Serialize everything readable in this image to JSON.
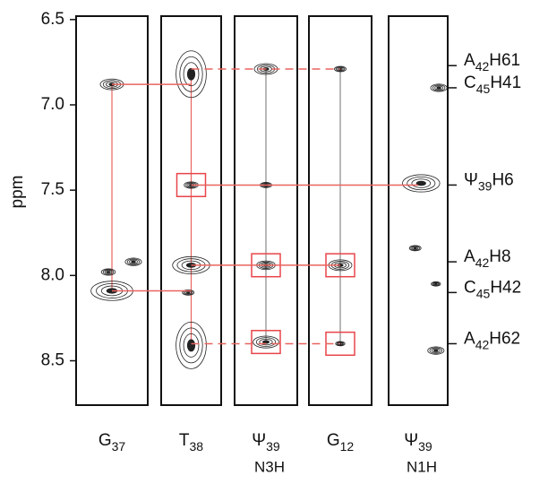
{
  "chart_data": {
    "type": "nmr-strips",
    "y_label": "ppm",
    "ylim": [
      6.48,
      8.76
    ],
    "yticks": [
      6.5,
      {
        "value": 7,
        "label": "7.0"
      },
      7.5,
      {
        "value": 8,
        "label": "8.0"
      },
      8.5
    ],
    "strips": [
      {
        "name": "G",
        "subscript": "37",
        "atom": null,
        "peaks": [
          6.88,
          8.09,
          7.98,
          7.92
        ],
        "boxes": []
      },
      {
        "name": "T",
        "subscript": "38",
        "atom": null,
        "peaks": [
          6.82,
          7.47,
          7.94,
          8.1,
          8.41
        ],
        "boxes": [
          7.47
        ]
      },
      {
        "name": "Ψ",
        "subscript": "39",
        "atom": "N3H",
        "peaks": [
          6.79,
          7.47,
          7.94,
          8.39
        ],
        "boxes": [
          7.94,
          8.39
        ]
      },
      {
        "name": "G",
        "subscript": "12",
        "atom": null,
        "peaks": [
          6.79,
          7.94,
          8.4
        ],
        "boxes": [
          7.94,
          8.4
        ]
      },
      {
        "name": "Ψ",
        "subscript": "39",
        "atom": "N1H",
        "peaks": [
          7.46,
          6.9,
          7.84,
          8.05,
          8.44
        ],
        "boxes": []
      }
    ],
    "connections": [
      {
        "from": 0,
        "to": 1,
        "ppm": 6.88,
        "dashed": false
      },
      {
        "from": 1,
        "to": 3,
        "ppm": 6.79,
        "dashed": true
      },
      {
        "from": 1,
        "to": 4,
        "ppm": 7.47,
        "dashed": false
      },
      {
        "from": 1,
        "to": 3,
        "ppm": 7.94,
        "dashed": false
      },
      {
        "from": 0,
        "to": 1,
        "ppm": 8.09,
        "dashed": false
      },
      {
        "from": 1,
        "to": 3,
        "ppm": 8.4,
        "dashed": true
      }
    ],
    "walks": [
      {
        "strip": 0,
        "from": 6.88,
        "to": 8.09,
        "color": "#e8645f"
      },
      {
        "strip": 1,
        "from": 6.79,
        "to": 8.4,
        "color": "#e8645f"
      },
      {
        "strip": 2,
        "from": 6.79,
        "to": 8.4,
        "color": "#888888"
      },
      {
        "strip": 3,
        "from": 6.79,
        "to": 8.4,
        "color": "#888888"
      }
    ],
    "assignments": [
      {
        "name": "A",
        "subscript": "42",
        "atom": "H61",
        "ppm": 6.77
      },
      {
        "name": "C",
        "subscript": "45",
        "atom": "H41",
        "ppm": 6.9
      },
      {
        "name": "Ψ",
        "subscript": "39",
        "atom": "H6",
        "ppm": 7.47
      },
      {
        "name": "A",
        "subscript": "42",
        "atom": "H8",
        "ppm": 7.92
      },
      {
        "name": "C",
        "subscript": "45",
        "atom": "H42",
        "ppm": 8.1
      },
      {
        "name": "A",
        "subscript": "42",
        "atom": "H62",
        "ppm": 8.4
      }
    ],
    "box_color": "#e8454a",
    "line_color": "#e8645f",
    "contour_color": "#222222"
  }
}
